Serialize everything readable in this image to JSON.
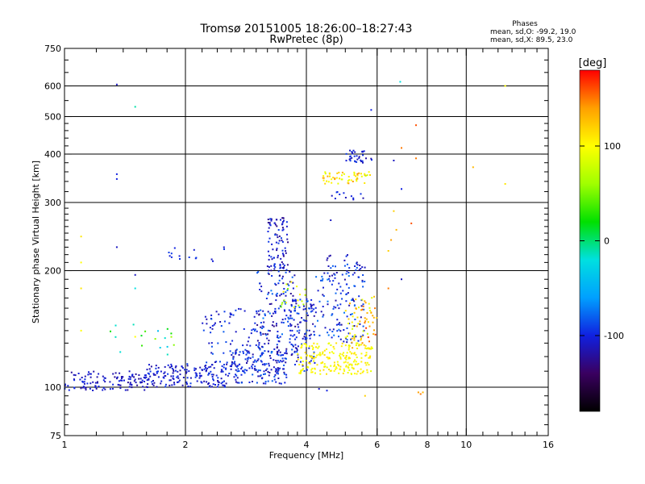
{
  "chart_data": {
    "type": "scatter",
    "title": "Tromsø 20151005 18:26:00–18:27:43",
    "subtitle": "RwPretec (8p)",
    "xlabel": "Frequency [MHz]",
    "ylabel": "Stationary phase Virtual Height [km]",
    "x_scale": "log2",
    "y_scale": "log",
    "xlim": [
      1,
      16
    ],
    "ylim": [
      75,
      750
    ],
    "x_major_ticks": [
      1,
      2,
      4,
      6,
      8,
      10,
      16
    ],
    "x_minor_ticks": [
      1.2,
      1.4,
      1.6,
      1.8,
      2.2,
      2.4,
      2.6,
      2.8,
      3,
      3.2,
      3.4,
      3.6,
      3.8,
      4.5,
      5,
      5.5,
      6.5,
      7,
      7.5,
      8.5,
      9,
      9.5,
      11,
      12,
      13,
      14,
      15
    ],
    "x_tick_labels": [
      "1",
      "2",
      "4",
      "6",
      "8",
      "10",
      "16"
    ],
    "y_major_ticks": [
      75,
      100,
      200,
      300,
      400,
      500,
      600,
      750
    ],
    "y_minor_ticks": [
      80,
      85,
      90,
      95,
      110,
      120,
      130,
      140,
      150,
      160,
      170,
      180,
      190,
      210,
      220,
      230,
      240,
      250,
      260,
      270,
      280,
      290,
      320,
      340,
      360,
      380,
      420,
      440,
      460,
      480,
      550,
      650,
      700
    ],
    "y_tick_labels": [
      "75",
      "100",
      "200",
      "300",
      "400",
      "500",
      "600",
      "750"
    ],
    "grid": true,
    "grid_x": [
      2,
      4,
      6,
      8,
      10
    ],
    "grid_y": [
      100,
      200,
      300,
      400,
      500,
      600
    ],
    "colorbar": {
      "label": "[deg]",
      "range": [
        -180,
        180
      ],
      "ticks": [
        100,
        0,
        -100
      ],
      "tick_labels": [
        "100",
        "0",
        "-100"
      ],
      "colormap": [
        "#000000",
        "#3a0060",
        "#1020e0",
        "#00a0ff",
        "#00e0e0",
        "#00e000",
        "#a0ff00",
        "#ffff00",
        "#ffa000",
        "#ff0000"
      ]
    },
    "stats": {
      "header": "Phases",
      "o_line": "mean, sd,O: -99.2, 19.0",
      "x_line": "mean, sd,X:  89.5, 23.0"
    },
    "series": [
      {
        "regions": [
          {
            "f": [
              1.0,
              1.6
            ],
            "h": [
              98,
              110
            ],
            "phase": [
              -125,
              -95
            ],
            "n": 120
          },
          {
            "f": [
              1.6,
              2.6
            ],
            "h": [
              100,
              115
            ],
            "phase": [
              -120,
              -90
            ],
            "n": 170
          },
          {
            "f": [
              2.6,
              3.6
            ],
            "h": [
              102,
              125
            ],
            "phase": [
              -120,
              -80
            ],
            "n": 150
          },
          {
            "f": [
              2.2,
              3.4
            ],
            "h": [
              110,
              160
            ],
            "phase": [
              -120,
              -80
            ],
            "n": 110
          },
          {
            "f": [
              3.0,
              3.8
            ],
            "h": [
              120,
              200
            ],
            "phase": [
              -130,
              -70
            ],
            "n": 140
          },
          {
            "f": [
              3.2,
              3.6
            ],
            "h": [
              200,
              275
            ],
            "phase": [
              -130,
              -90
            ],
            "n": 90
          },
          {
            "f": [
              3.6,
              4.2
            ],
            "h": [
              110,
              170
            ],
            "phase": [
              -120,
              -80
            ],
            "n": 100
          },
          {
            "f": [
              4.2,
              5.6
            ],
            "h": [
              130,
              200
            ],
            "phase": [
              -120,
              -70
            ],
            "n": 130
          },
          {
            "f": [
              4.5,
              5.6
            ],
            "h": [
              200,
              220
            ],
            "phase": [
              -120,
              -80
            ],
            "n": 25
          },
          {
            "f": [
              5.0,
              5.9
            ],
            "h": [
              380,
              410
            ],
            "phase": [
              -120,
              -90
            ],
            "n": 35
          },
          {
            "f": [
              4.6,
              5.6
            ],
            "h": [
              300,
              320
            ],
            "phase": [
              -120,
              -90
            ],
            "n": 12
          },
          {
            "f": [
              1.8,
              2.6
            ],
            "h": [
              210,
              230
            ],
            "phase": [
              -110,
              -90
            ],
            "n": 15
          },
          {
            "f": [
              1.3,
              1.9
            ],
            "h": [
              120,
              150
            ],
            "phase": [
              -50,
              60
            ],
            "n": 18
          },
          {
            "f": [
              3.4,
              4.0
            ],
            "h": [
              160,
              190
            ],
            "phase": [
              30,
              110
            ],
            "n": 18
          }
        ]
      },
      {
        "regions": [
          {
            "f": [
              3.8,
              5.8
            ],
            "h": [
              108,
              130
            ],
            "phase": [
              90,
              115
            ],
            "n": 200
          },
          {
            "f": [
              5.0,
              5.9
            ],
            "h": [
              125,
              175
            ],
            "phase": [
              80,
              140
            ],
            "n": 60
          },
          {
            "f": [
              4.4,
              5.8
            ],
            "h": [
              335,
              360
            ],
            "phase": [
              80,
              150
            ],
            "n": 55
          },
          {
            "f": [
              5.5,
              6.0
            ],
            "h": [
              130,
              170
            ],
            "phase": [
              120,
              170
            ],
            "n": 15
          }
        ]
      }
    ],
    "outliers": [
      {
        "f": 1.35,
        "h": 605,
        "phase": -110
      },
      {
        "f": 1.5,
        "h": 530,
        "phase": -10
      },
      {
        "f": 1.35,
        "h": 355,
        "phase": -100
      },
      {
        "f": 1.35,
        "h": 345,
        "phase": -100
      },
      {
        "f": 1.1,
        "h": 245,
        "phase": 110
      },
      {
        "f": 1.1,
        "h": 210,
        "phase": 100
      },
      {
        "f": 1.1,
        "h": 180,
        "phase": 110
      },
      {
        "f": 1.1,
        "h": 140,
        "phase": 100
      },
      {
        "f": 1.5,
        "h": 195,
        "phase": -110
      },
      {
        "f": 1.5,
        "h": 180,
        "phase": -20
      },
      {
        "f": 1.5,
        "h": 135,
        "phase": 100
      },
      {
        "f": 1.35,
        "h": 230,
        "phase": -110
      },
      {
        "f": 5.8,
        "h": 520,
        "phase": -100
      },
      {
        "f": 6.85,
        "h": 615,
        "phase": -20
      },
      {
        "f": 7.5,
        "h": 475,
        "phase": 160
      },
      {
        "f": 6.9,
        "h": 415,
        "phase": 150
      },
      {
        "f": 6.6,
        "h": 385,
        "phase": -110
      },
      {
        "f": 7.5,
        "h": 390,
        "phase": 150
      },
      {
        "f": 6.9,
        "h": 325,
        "phase": -100
      },
      {
        "f": 6.6,
        "h": 285,
        "phase": 120
      },
      {
        "f": 7.3,
        "h": 265,
        "phase": 160
      },
      {
        "f": 6.7,
        "h": 255,
        "phase": 130
      },
      {
        "f": 6.5,
        "h": 240,
        "phase": 140
      },
      {
        "f": 6.4,
        "h": 225,
        "phase": 120
      },
      {
        "f": 6.9,
        "h": 190,
        "phase": -110
      },
      {
        "f": 6.4,
        "h": 180,
        "phase": 150
      },
      {
        "f": 10.4,
        "h": 370,
        "phase": 130
      },
      {
        "f": 12.5,
        "h": 335,
        "phase": 110
      },
      {
        "f": 12.5,
        "h": 600,
        "phase": 100
      },
      {
        "f": 7.6,
        "h": 97,
        "phase": 140
      },
      {
        "f": 7.7,
        "h": 96,
        "phase": 150
      },
      {
        "f": 7.8,
        "h": 97,
        "phase": 130
      },
      {
        "f": 4.5,
        "h": 98,
        "phase": -100
      },
      {
        "f": 4.3,
        "h": 99,
        "phase": -110
      },
      {
        "f": 5.6,
        "h": 95,
        "phase": 120
      },
      {
        "f": 4.6,
        "h": 270,
        "phase": -110
      }
    ]
  }
}
